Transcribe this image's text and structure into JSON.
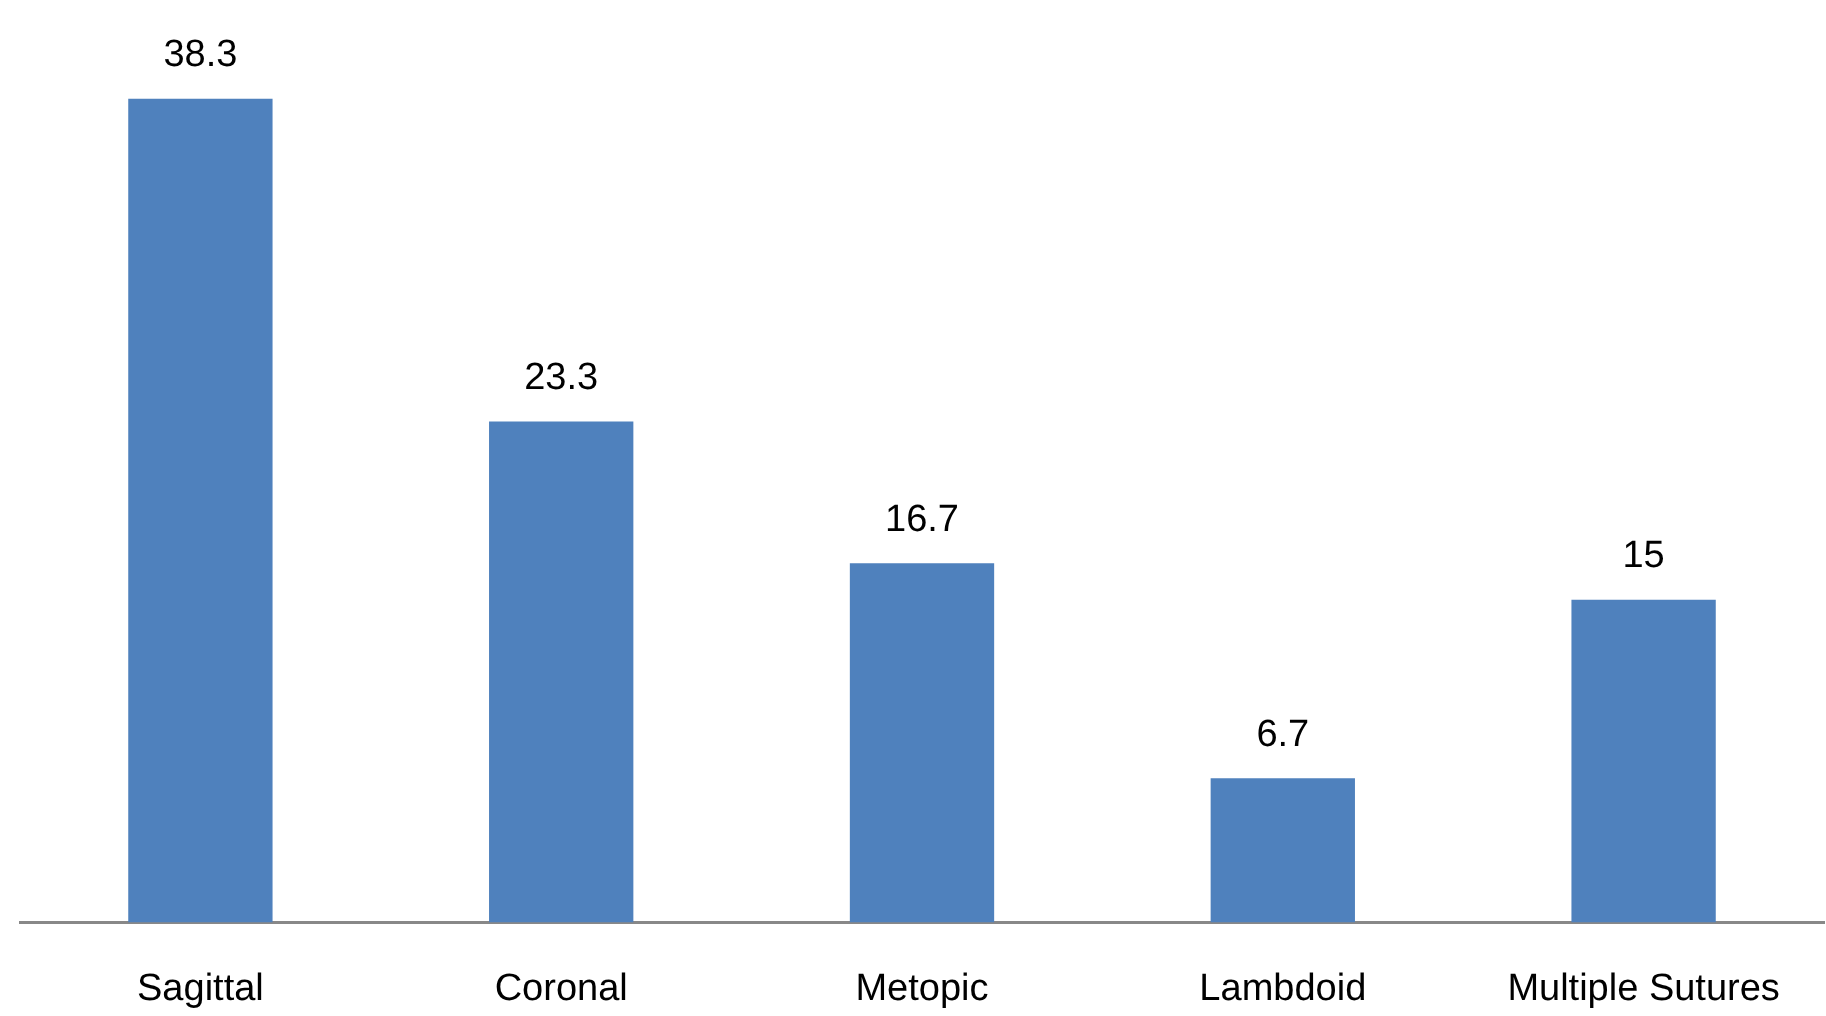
{
  "chart_data": {
    "type": "bar",
    "categories": [
      "Sagittal",
      "Coronal",
      "Metopic",
      "Lambdoid",
      "Multiple Sutures"
    ],
    "values": [
      38.3,
      23.3,
      16.7,
      6.7,
      15
    ],
    "color": "#4f81bd",
    "tick_labels": "x",
    "data_labels": true,
    "grid": false,
    "legend": false
  }
}
